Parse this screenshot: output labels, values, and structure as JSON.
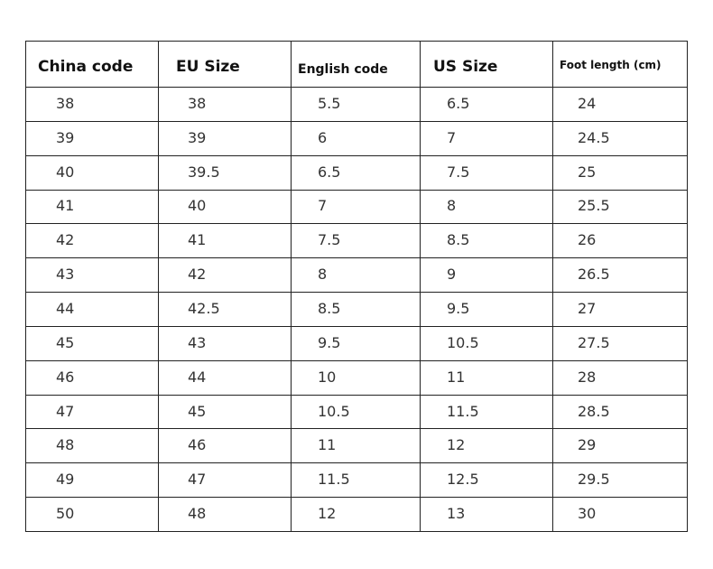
{
  "table": {
    "headers": [
      "China code",
      "EU Size",
      "English code",
      "US Size",
      "Foot length (cm)"
    ],
    "rows": [
      [
        "38",
        "38",
        "5.5",
        "6.5",
        "24"
      ],
      [
        "39",
        "39",
        "6",
        "7",
        "24.5"
      ],
      [
        "40",
        "39.5",
        "6.5",
        "7.5",
        "25"
      ],
      [
        "41",
        "40",
        "7",
        "8",
        "25.5"
      ],
      [
        "42",
        "41",
        "7.5",
        "8.5",
        "26"
      ],
      [
        "43",
        "42",
        "8",
        "9",
        "26.5"
      ],
      [
        "44",
        "42.5",
        "8.5",
        "9.5",
        "27"
      ],
      [
        "45",
        "43",
        "9.5",
        "10.5",
        "27.5"
      ],
      [
        "46",
        "44",
        "10",
        "11",
        "28"
      ],
      [
        "47",
        "45",
        "10.5",
        "11.5",
        "28.5"
      ],
      [
        "48",
        "46",
        "11",
        "12",
        "29"
      ],
      [
        "49",
        "47",
        "11.5",
        "12.5",
        "29.5"
      ],
      [
        "50",
        "48",
        "12",
        "13",
        "30"
      ]
    ]
  }
}
